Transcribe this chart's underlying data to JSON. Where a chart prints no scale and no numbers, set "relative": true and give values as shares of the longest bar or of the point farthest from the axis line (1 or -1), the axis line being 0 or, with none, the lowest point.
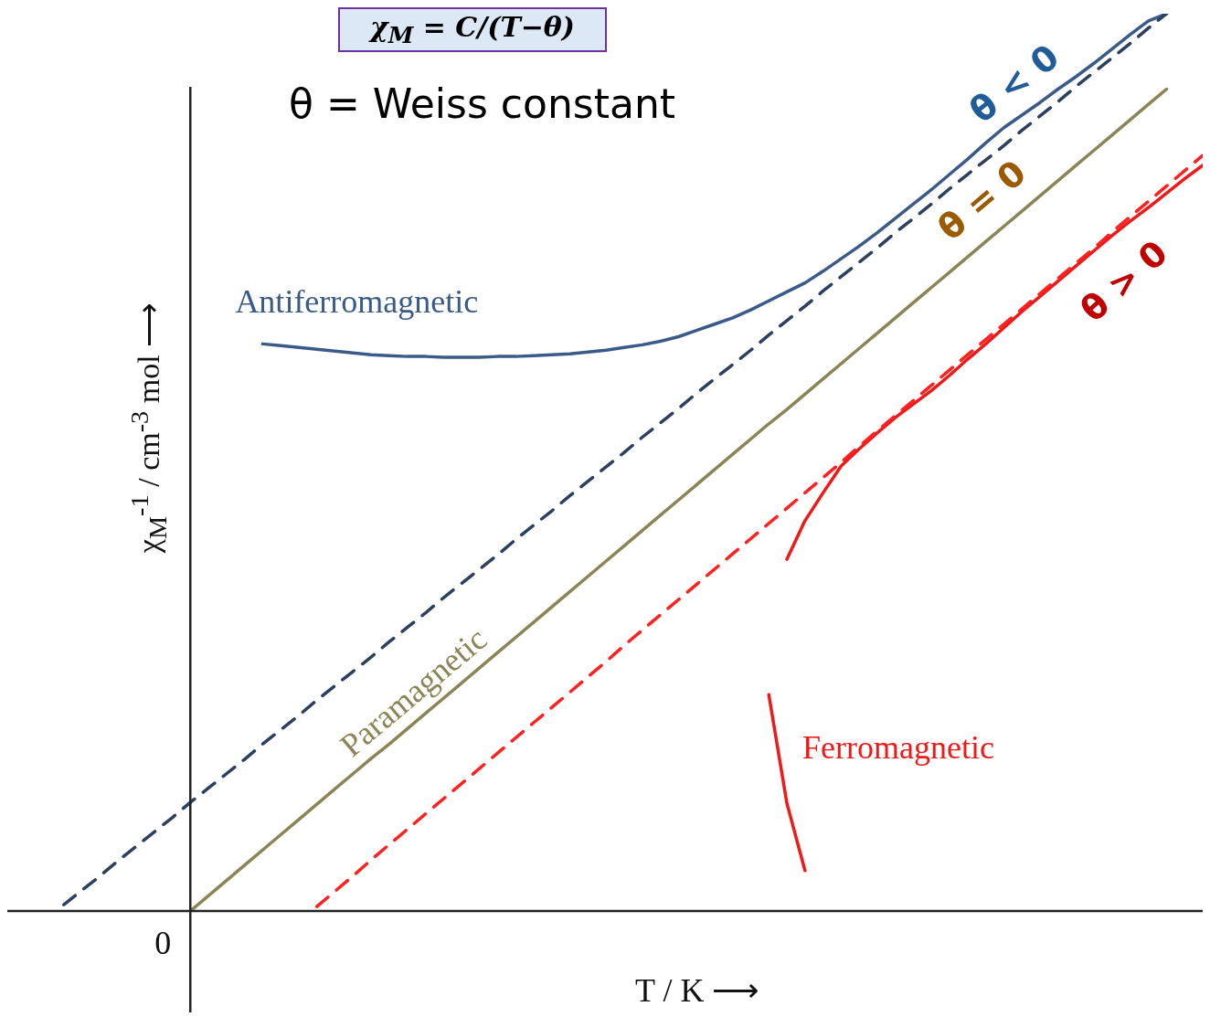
{
  "chart_data": {
    "type": "line",
    "relative": true,
    "xlabel": "T / K ⟶",
    "ylabel": "χ$_{M}$$^{-1}$ / cm$^{-3}$ mol ⟶",
    "legend": false,
    "marker": "none",
    "annotations": [
      "χ$_{M}$ = C/(T−θ)",
      "θ = Weiss constant",
      "θ < 0",
      "θ = 0",
      "θ > 0",
      "0"
    ],
    "categories": [
      null,
      null,
      null,
      null,
      null,
      null,
      null,
      null,
      null,
      null,
      null,
      null,
      null,
      null,
      null,
      null,
      null,
      null,
      null,
      null,
      null,
      null,
      null,
      null,
      null,
      null,
      null,
      null,
      null,
      null,
      null,
      null,
      null,
      null,
      null,
      null,
      null,
      null,
      null,
      null,
      null,
      null,
      null,
      null,
      null,
      null,
      null,
      null,
      null,
      null,
      null,
      null,
      null,
      null,
      null,
      null,
      null,
      null,
      null,
      null,
      null,
      null,
      null,
      null,
      null
    ],
    "series": [
      {
        "color": "#2b3f5e",
        "line_style": "dashed",
        "values": [
          null,
          0.007,
          0.023,
          0.039,
          0.056,
          0.072,
          0.088,
          0.104,
          0.121,
          0.137,
          0.153,
          0.169,
          0.186,
          0.202,
          0.218,
          0.235,
          0.251,
          0.267,
          0.283,
          0.3,
          0.316,
          0.332,
          0.349,
          0.365,
          0.381,
          0.397,
          0.414,
          0.43,
          0.446,
          0.463,
          0.479,
          0.495,
          0.511,
          0.528,
          0.544,
          0.56,
          0.577,
          0.593,
          0.609,
          0.625,
          0.642,
          0.658,
          0.674,
          0.691,
          0.707,
          0.723,
          0.739,
          0.756,
          0.772,
          0.788,
          0.805,
          0.821,
          0.837,
          0.853,
          0.87,
          0.886,
          0.902,
          0.919,
          0.935,
          0.951,
          0.967,
          0.984,
          1.0,
          null,
          null
        ]
      },
      {
        "name": "Antiferromagnetic",
        "color": "#3a5a8a",
        "line_style": "solid",
        "values": [
          null,
          null,
          null,
          null,
          null,
          null,
          null,
          null,
          null,
          null,
          null,
          null,
          0.632,
          0.63,
          0.628,
          0.626,
          0.624,
          0.622,
          0.62,
          0.619,
          0.618,
          0.618,
          0.617,
          0.617,
          0.617,
          0.618,
          0.618,
          0.619,
          0.62,
          0.621,
          0.623,
          0.625,
          0.628,
          0.631,
          0.635,
          0.64,
          0.647,
          0.654,
          0.661,
          0.67,
          0.68,
          0.69,
          0.7,
          0.713,
          0.727,
          0.741,
          0.756,
          0.772,
          0.788,
          0.804,
          0.821,
          0.838,
          0.856,
          0.873,
          0.887,
          0.901,
          0.916,
          0.93,
          0.945,
          0.961,
          0.977,
          0.992,
          1.0,
          null,
          null
        ]
      },
      {
        "name": "Paramagnetic",
        "color": "#8b8456",
        "line_style": "solid",
        "values": [
          null,
          null,
          null,
          null,
          null,
          null,
          null,
          null,
          0,
          0.017,
          0.034,
          0.051,
          0.068,
          0.085,
          0.102,
          0.119,
          0.136,
          0.153,
          0.17,
          0.186,
          0.203,
          0.22,
          0.237,
          0.254,
          0.271,
          0.288,
          0.305,
          0.322,
          0.339,
          0.356,
          0.373,
          0.39,
          0.407,
          0.424,
          0.441,
          0.458,
          0.475,
          0.492,
          0.509,
          0.526,
          0.543,
          0.559,
          0.576,
          0.593,
          0.61,
          0.627,
          0.644,
          0.661,
          0.678,
          0.695,
          0.712,
          0.729,
          0.746,
          0.763,
          0.78,
          0.797,
          0.814,
          0.831,
          0.848,
          0.865,
          0.882,
          0.899,
          0.916,
          null,
          null
        ]
      },
      {
        "color": "#ff2020",
        "line_style": "dashed",
        "values": [
          null,
          null,
          null,
          null,
          null,
          null,
          null,
          null,
          null,
          null,
          null,
          null,
          null,
          null,
          null,
          0.005,
          0.022,
          0.039,
          0.057,
          0.074,
          0.091,
          0.108,
          0.125,
          0.142,
          0.159,
          0.176,
          0.193,
          0.21,
          0.227,
          0.244,
          0.261,
          0.278,
          0.296,
          0.313,
          0.33,
          0.347,
          0.364,
          0.381,
          0.398,
          0.415,
          0.432,
          0.449,
          0.466,
          0.483,
          0.5,
          0.518,
          0.535,
          0.552,
          0.569,
          0.586,
          0.603,
          0.62,
          0.637,
          0.654,
          0.671,
          0.688,
          0.705,
          0.722,
          0.739,
          0.757,
          0.774,
          0.791,
          0.808,
          0.825,
          0.842
        ]
      },
      {
        "name": "Ferromagnetic",
        "color": "#f01818",
        "line_style": "solid",
        "values": [
          null,
          null,
          null,
          null,
          null,
          null,
          null,
          null,
          null,
          null,
          null,
          null,
          null,
          null,
          null,
          null,
          null,
          null,
          null,
          null,
          null,
          null,
          null,
          null,
          null,
          null,
          null,
          null,
          null,
          null,
          null,
          null,
          null,
          null,
          null,
          null,
          null,
          null,
          null,
          null,
          null,
          0.392,
          0.435,
          0.466,
          0.496,
          0.515,
          0.533,
          0.55,
          0.565,
          0.58,
          0.597,
          0.615,
          0.632,
          0.65,
          0.668,
          0.685,
          0.702,
          0.719,
          0.736,
          0.753,
          0.769,
          0.784,
          0.8,
          0.816,
          0.831
        ]
      },
      {
        "color": "#f01818",
        "line_style": "solid",
        "values": [
          null,
          null,
          null,
          null,
          null,
          null,
          null,
          null,
          null,
          null,
          null,
          null,
          null,
          null,
          null,
          null,
          null,
          null,
          null,
          null,
          null,
          null,
          null,
          null,
          null,
          null,
          null,
          null,
          null,
          null,
          null,
          null,
          null,
          null,
          null,
          null,
          null,
          null,
          null,
          null,
          0.241,
          0.12,
          0.045,
          null,
          null,
          null,
          null,
          null,
          null,
          null,
          null,
          null,
          null,
          null,
          null,
          null,
          null,
          null,
          null,
          null,
          null,
          null,
          null,
          null,
          null
        ]
      }
    ]
  }
}
